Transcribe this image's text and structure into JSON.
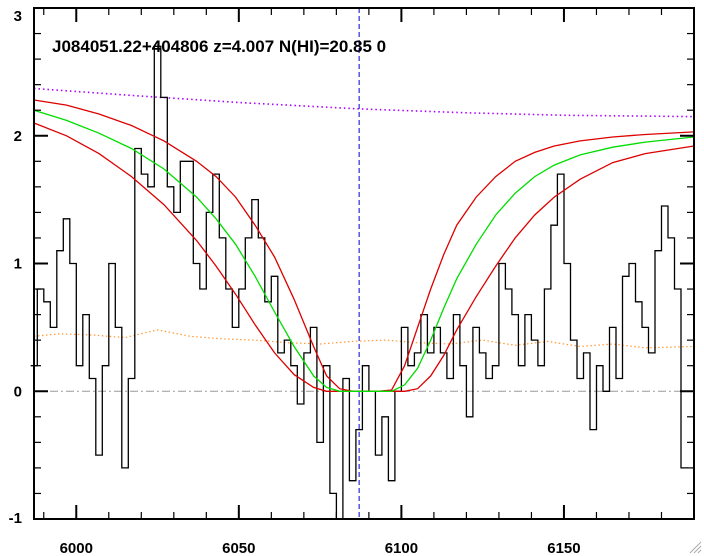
{
  "chart_data": {
    "type": "line",
    "title": "J084051.22+404806 z=4.007 N(HI)=20.85 0",
    "xlabel": "",
    "ylabel": "",
    "xlim": [
      5987,
      6190
    ],
    "ylim": [
      -1,
      3
    ],
    "xticks": [
      6000,
      6050,
      6100,
      6150
    ],
    "yticks": [
      -1,
      0,
      1,
      2,
      3
    ],
    "x_minor_step": 10,
    "y_minor_step": 0.2,
    "center_wavelength": 6087,
    "colors": {
      "flux": "#000000",
      "fit": "#00dd00",
      "fit_bounds": "#dd0000",
      "continuum": "#aa00ff",
      "error": "#ff9933",
      "center_line": "#0000cc",
      "zero_line": "#999999"
    },
    "series": [
      {
        "kind": "flux",
        "x": [
          5987,
          5989,
          5991,
          5993,
          5995,
          5997,
          5999,
          6001,
          6003,
          6005,
          6007,
          6009,
          6011,
          6013,
          6015,
          6017,
          6019,
          6021,
          6023,
          6025,
          6027,
          6029,
          6031,
          6033,
          6035,
          6037,
          6039,
          6041,
          6043,
          6045,
          6047,
          6049,
          6051,
          6053,
          6055,
          6057,
          6059,
          6061,
          6063,
          6065,
          6067,
          6069,
          6071,
          6073,
          6075,
          6077,
          6079,
          6081,
          6083,
          6085,
          6087,
          6089,
          6091,
          6093,
          6095,
          6097,
          6099,
          6101,
          6103,
          6105,
          6107,
          6109,
          6111,
          6113,
          6115,
          6117,
          6119,
          6121,
          6123,
          6125,
          6127,
          6129,
          6131,
          6133,
          6135,
          6137,
          6139,
          6141,
          6143,
          6145,
          6147,
          6149,
          6151,
          6153,
          6155,
          6157,
          6159,
          6161,
          6163,
          6165,
          6167,
          6169,
          6171,
          6173,
          6175,
          6177,
          6179,
          6181,
          6183,
          6185,
          6187
        ],
        "y": [
          0.2,
          0.8,
          0.7,
          0.5,
          1.1,
          1.35,
          1.0,
          0.2,
          0.6,
          0.1,
          -0.5,
          0.2,
          1.0,
          0.5,
          -0.6,
          0.1,
          1.9,
          1.7,
          1.6,
          2.7,
          2.3,
          1.6,
          1.4,
          1.8,
          1.8,
          1.0,
          0.8,
          1.4,
          1.7,
          1.2,
          0.8,
          0.5,
          0.8,
          1.2,
          1.5,
          1.2,
          0.7,
          0.9,
          0.3,
          0.4,
          0.2,
          -0.1,
          0.3,
          0.5,
          -0.4,
          0.2,
          -0.8,
          -1.0,
          0.1,
          -0.7,
          -0.3,
          0.2,
          0.0,
          -0.5,
          -0.2,
          -0.7,
          0.0,
          0.5,
          0.2,
          0.3,
          0.6,
          0.3,
          0.5,
          0.3,
          0.1,
          0.6,
          0.2,
          -0.2,
          0.5,
          0.3,
          0.1,
          0.2,
          1.0,
          0.8,
          0.6,
          0.2,
          0.6,
          0.4,
          0.2,
          0.8,
          1.3,
          1.7,
          1.0,
          0.4,
          0.1,
          0.3,
          -0.3,
          0.2,
          0.0,
          0.5,
          0.1,
          0.9,
          1.0,
          0.7,
          0.5,
          0.3,
          1.1,
          1.45,
          1.2,
          0.8,
          -0.6
        ]
      },
      {
        "kind": "fit",
        "x": [
          5987,
          5997,
          6007,
          6017,
          6027,
          6037,
          6043,
          6049,
          6055,
          6061,
          6067,
          6073,
          6077,
          6081,
          6085,
          6089,
          6093,
          6097,
          6101,
          6105,
          6109,
          6113,
          6117,
          6123,
          6129,
          6135,
          6141,
          6147,
          6155,
          6165,
          6175,
          6190
        ],
        "y": [
          2.2,
          2.12,
          2.02,
          1.9,
          1.74,
          1.52,
          1.35,
          1.15,
          0.9,
          0.62,
          0.35,
          0.12,
          0.03,
          0.0,
          0.0,
          0.0,
          0.0,
          0.0,
          0.05,
          0.18,
          0.4,
          0.65,
          0.88,
          1.15,
          1.38,
          1.55,
          1.68,
          1.77,
          1.85,
          1.91,
          1.95,
          1.99
        ]
      },
      {
        "kind": "fit_upper",
        "x": [
          5987,
          5997,
          6007,
          6017,
          6027,
          6037,
          6043,
          6049,
          6055,
          6061,
          6067,
          6073,
          6077,
          6081,
          6085,
          6089,
          6093,
          6097,
          6101,
          6105,
          6109,
          6113,
          6117,
          6123,
          6129,
          6135,
          6141,
          6147,
          6155,
          6165,
          6175,
          6190
        ],
        "y": [
          2.28,
          2.24,
          2.17,
          2.08,
          1.96,
          1.8,
          1.68,
          1.52,
          1.3,
          1.05,
          0.72,
          0.35,
          0.12,
          0.02,
          0.0,
          0.0,
          0.0,
          0.01,
          0.2,
          0.5,
          0.8,
          1.07,
          1.3,
          1.52,
          1.68,
          1.8,
          1.87,
          1.92,
          1.96,
          1.99,
          2.01,
          2.03
        ]
      },
      {
        "kind": "fit_lower",
        "x": [
          5987,
          5997,
          6007,
          6017,
          6027,
          6037,
          6043,
          6049,
          6055,
          6061,
          6067,
          6073,
          6077,
          6081,
          6085,
          6089,
          6093,
          6097,
          6101,
          6105,
          6109,
          6113,
          6117,
          6123,
          6129,
          6135,
          6141,
          6147,
          6155,
          6165,
          6175,
          6190
        ],
        "y": [
          2.1,
          2.0,
          1.86,
          1.68,
          1.46,
          1.18,
          0.98,
          0.76,
          0.52,
          0.3,
          0.13,
          0.03,
          0.0,
          0.0,
          0.0,
          0.0,
          0.0,
          0.0,
          0.0,
          0.02,
          0.12,
          0.28,
          0.48,
          0.74,
          0.98,
          1.2,
          1.38,
          1.52,
          1.66,
          1.79,
          1.86,
          1.92
        ]
      },
      {
        "kind": "continuum",
        "x": [
          5987,
          6020,
          6050,
          6087,
          6120,
          6150,
          6190
        ],
        "y": [
          2.37,
          2.31,
          2.26,
          2.21,
          2.18,
          2.16,
          2.15
        ]
      },
      {
        "kind": "error",
        "x": [
          5987,
          5995,
          6005,
          6015,
          6025,
          6035,
          6045,
          6055,
          6065,
          6075,
          6085,
          6095,
          6105,
          6115,
          6125,
          6135,
          6145,
          6155,
          6165,
          6175,
          6190
        ],
        "y": [
          0.43,
          0.45,
          0.44,
          0.42,
          0.48,
          0.43,
          0.41,
          0.4,
          0.38,
          0.37,
          0.39,
          0.4,
          0.38,
          0.37,
          0.4,
          0.36,
          0.39,
          0.35,
          0.37,
          0.34,
          0.35
        ]
      }
    ]
  }
}
